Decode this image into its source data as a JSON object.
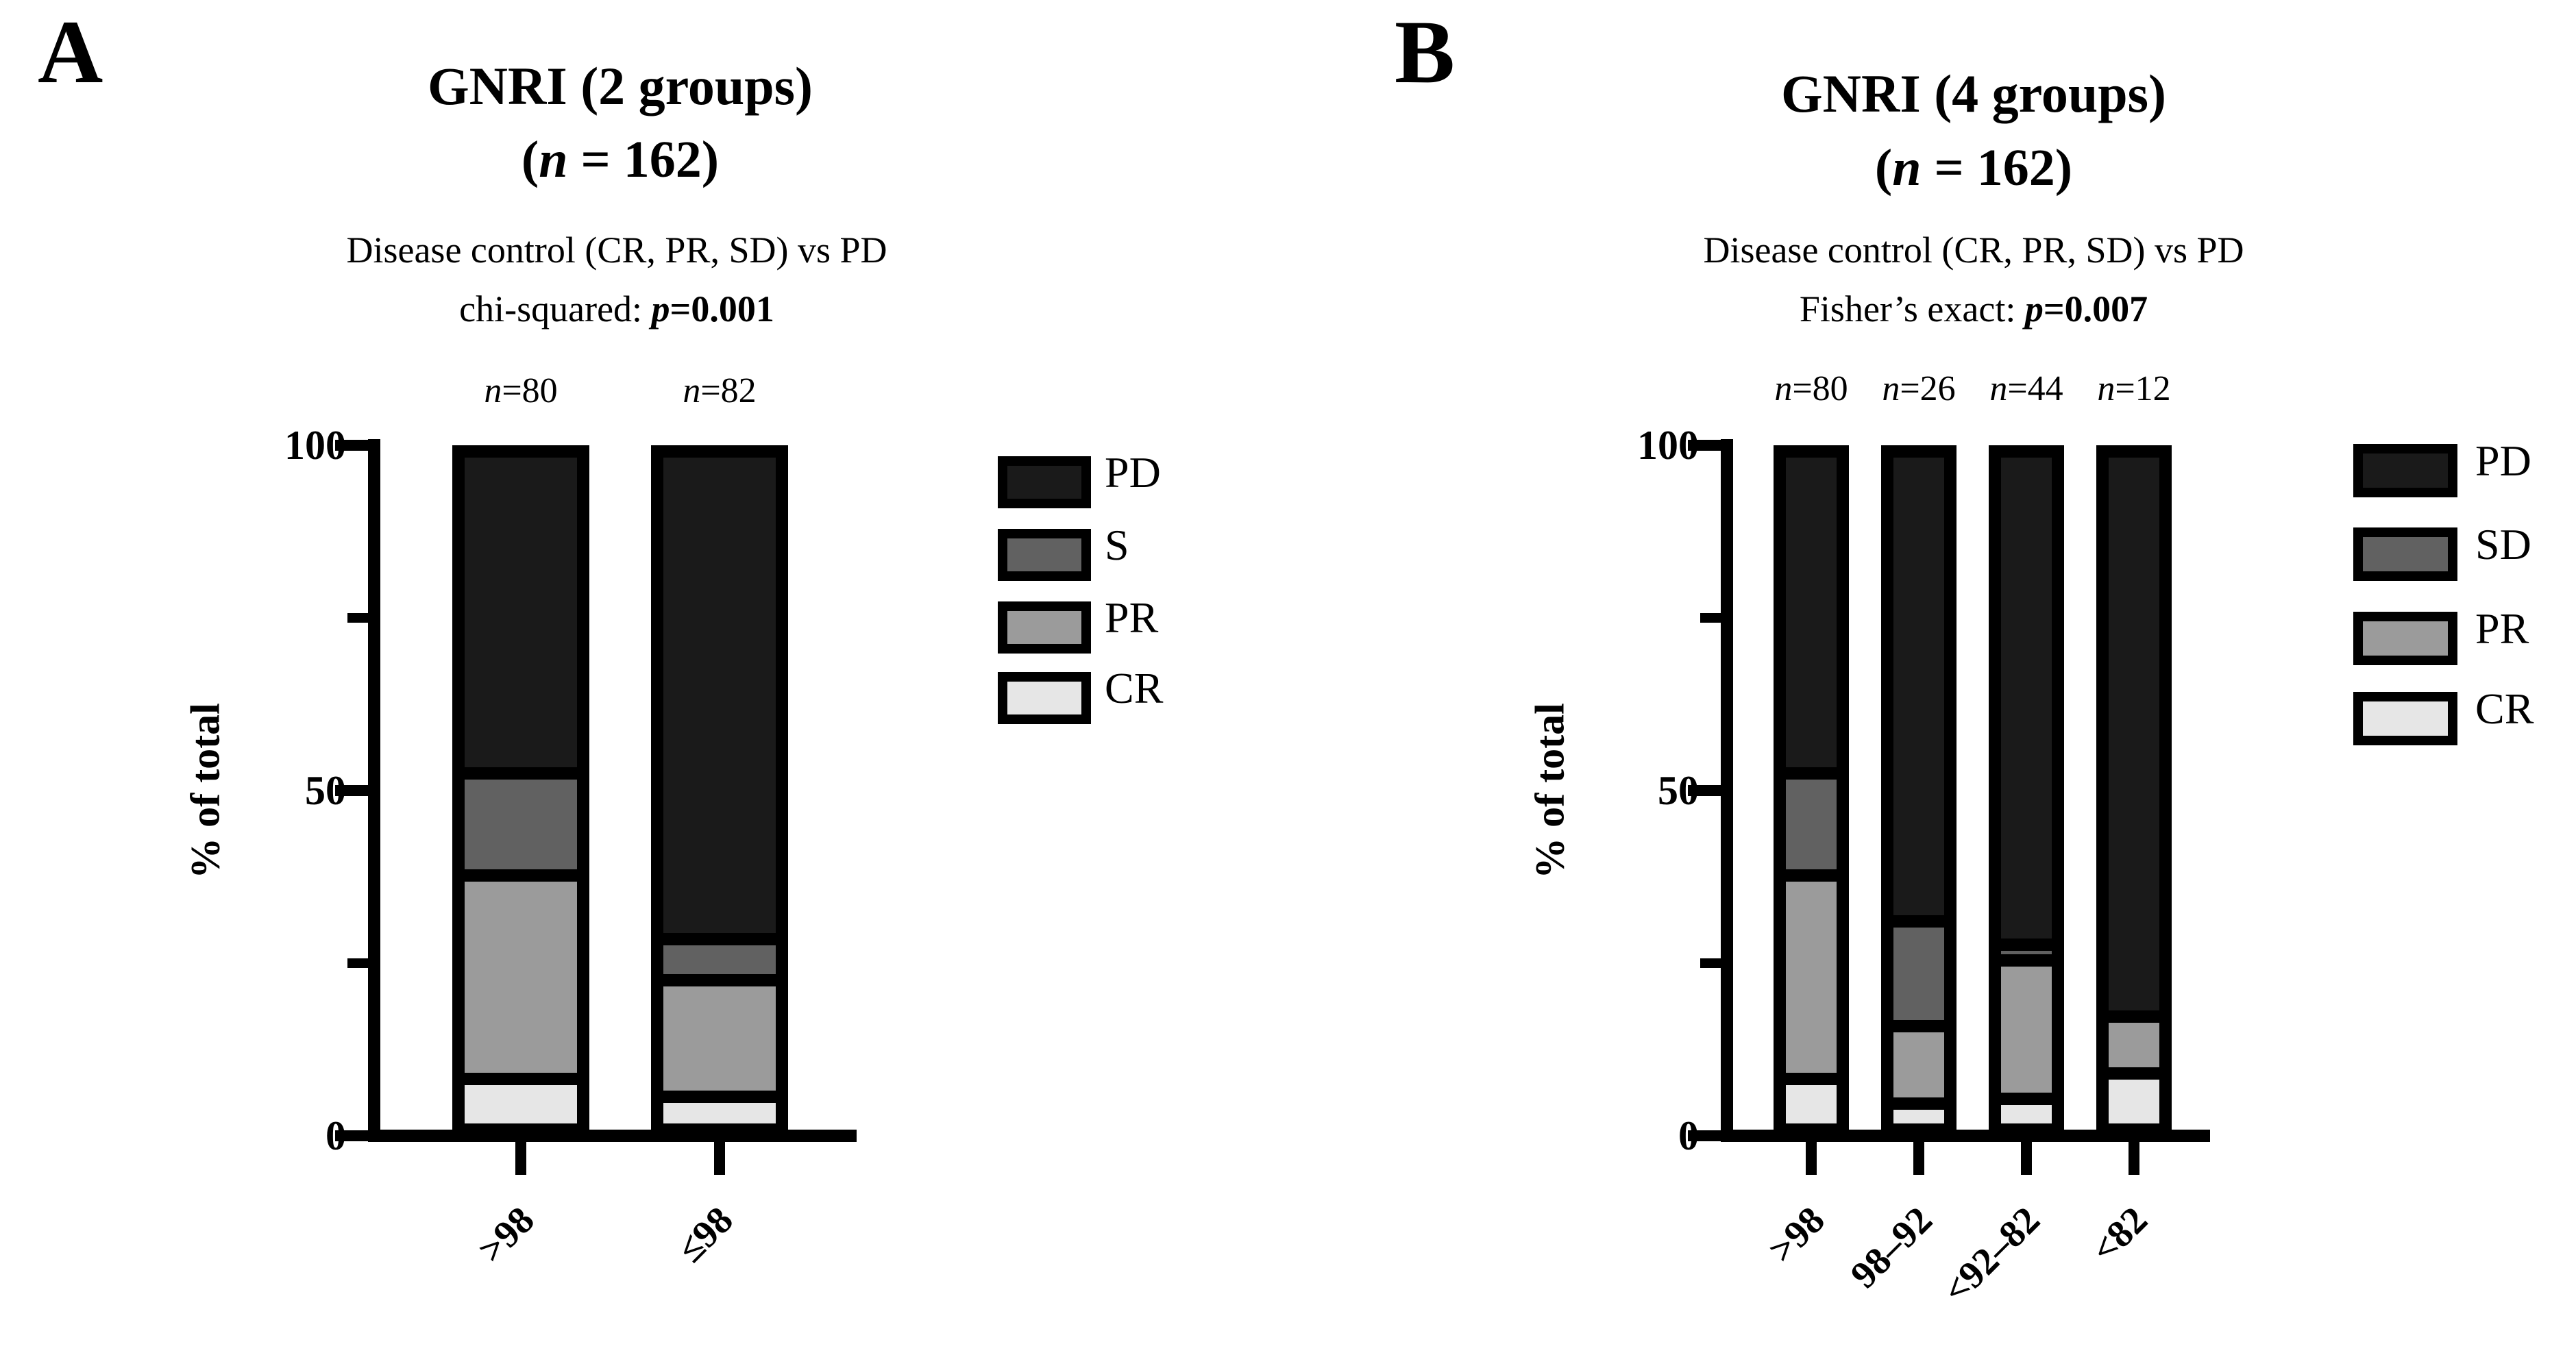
{
  "figure": {
    "panel_letters": [
      "A",
      "B"
    ]
  },
  "colors": {
    "PD": "#1a1a1a",
    "SD": "#616161",
    "S": "#616161",
    "PR": "#9b9b9b",
    "CR": "#e6e6e6",
    "axis": "#000000",
    "background": "#ffffff"
  },
  "chart_data": [
    {
      "type": "bar",
      "subtype": "stacked-percent",
      "panel_letter": "A",
      "title": "GNRI (2 groups)",
      "title_line2": "(n = 162)",
      "subtitle": "Disease control (CR, PR, SD) vs PD",
      "stat_prefix": "chi-squared: ",
      "stat_value": "p=0.001",
      "ylabel": "% of total",
      "ylim": [
        0,
        100
      ],
      "yticks_major": [
        100,
        50,
        0
      ],
      "yticks_minor": [
        75,
        25
      ],
      "grid": false,
      "categories": [
        ">98",
        "≤98"
      ],
      "bar_n": [
        "n=80",
        "n=82"
      ],
      "series": [
        {
          "name": "CR",
          "values": [
            7.5,
            4.9
          ]
        },
        {
          "name": "PR",
          "values": [
            30.0,
            17.1
          ]
        },
        {
          "name": "S",
          "values": [
            15.0,
            6.1
          ]
        },
        {
          "name": "PD",
          "values": [
            47.5,
            71.9
          ]
        }
      ],
      "legend": [
        "PD",
        "S",
        "PR",
        "CR"
      ],
      "legend_position": "right"
    },
    {
      "type": "bar",
      "subtype": "stacked-percent",
      "panel_letter": "B",
      "title": "GNRI (4 groups)",
      "title_line2": "(n = 162)",
      "subtitle": "Disease control (CR, PR, SD) vs PD",
      "stat_prefix": "Fisher’s exact: ",
      "stat_value": "p=0.007",
      "ylabel": "% of total",
      "ylim": [
        0,
        100
      ],
      "yticks_major": [
        100,
        50,
        0
      ],
      "yticks_minor": [
        75,
        25
      ],
      "grid": false,
      "categories": [
        ">98",
        "98–92",
        "<92–82",
        "<82"
      ],
      "bar_n": [
        "n=80",
        "n=26",
        "n=44",
        "n=12"
      ],
      "series": [
        {
          "name": "CR",
          "values": [
            7.5,
            3.8,
            4.5,
            8.3
          ]
        },
        {
          "name": "PR",
          "values": [
            30.0,
            11.5,
            20.5,
            8.4
          ]
        },
        {
          "name": "SD",
          "values": [
            15.0,
            15.4,
            2.3,
            0
          ]
        },
        {
          "name": "PD",
          "values": [
            47.5,
            69.3,
            72.7,
            83.3
          ]
        }
      ],
      "legend": [
        "PD",
        "SD",
        "PR",
        "CR"
      ],
      "legend_position": "right"
    }
  ]
}
